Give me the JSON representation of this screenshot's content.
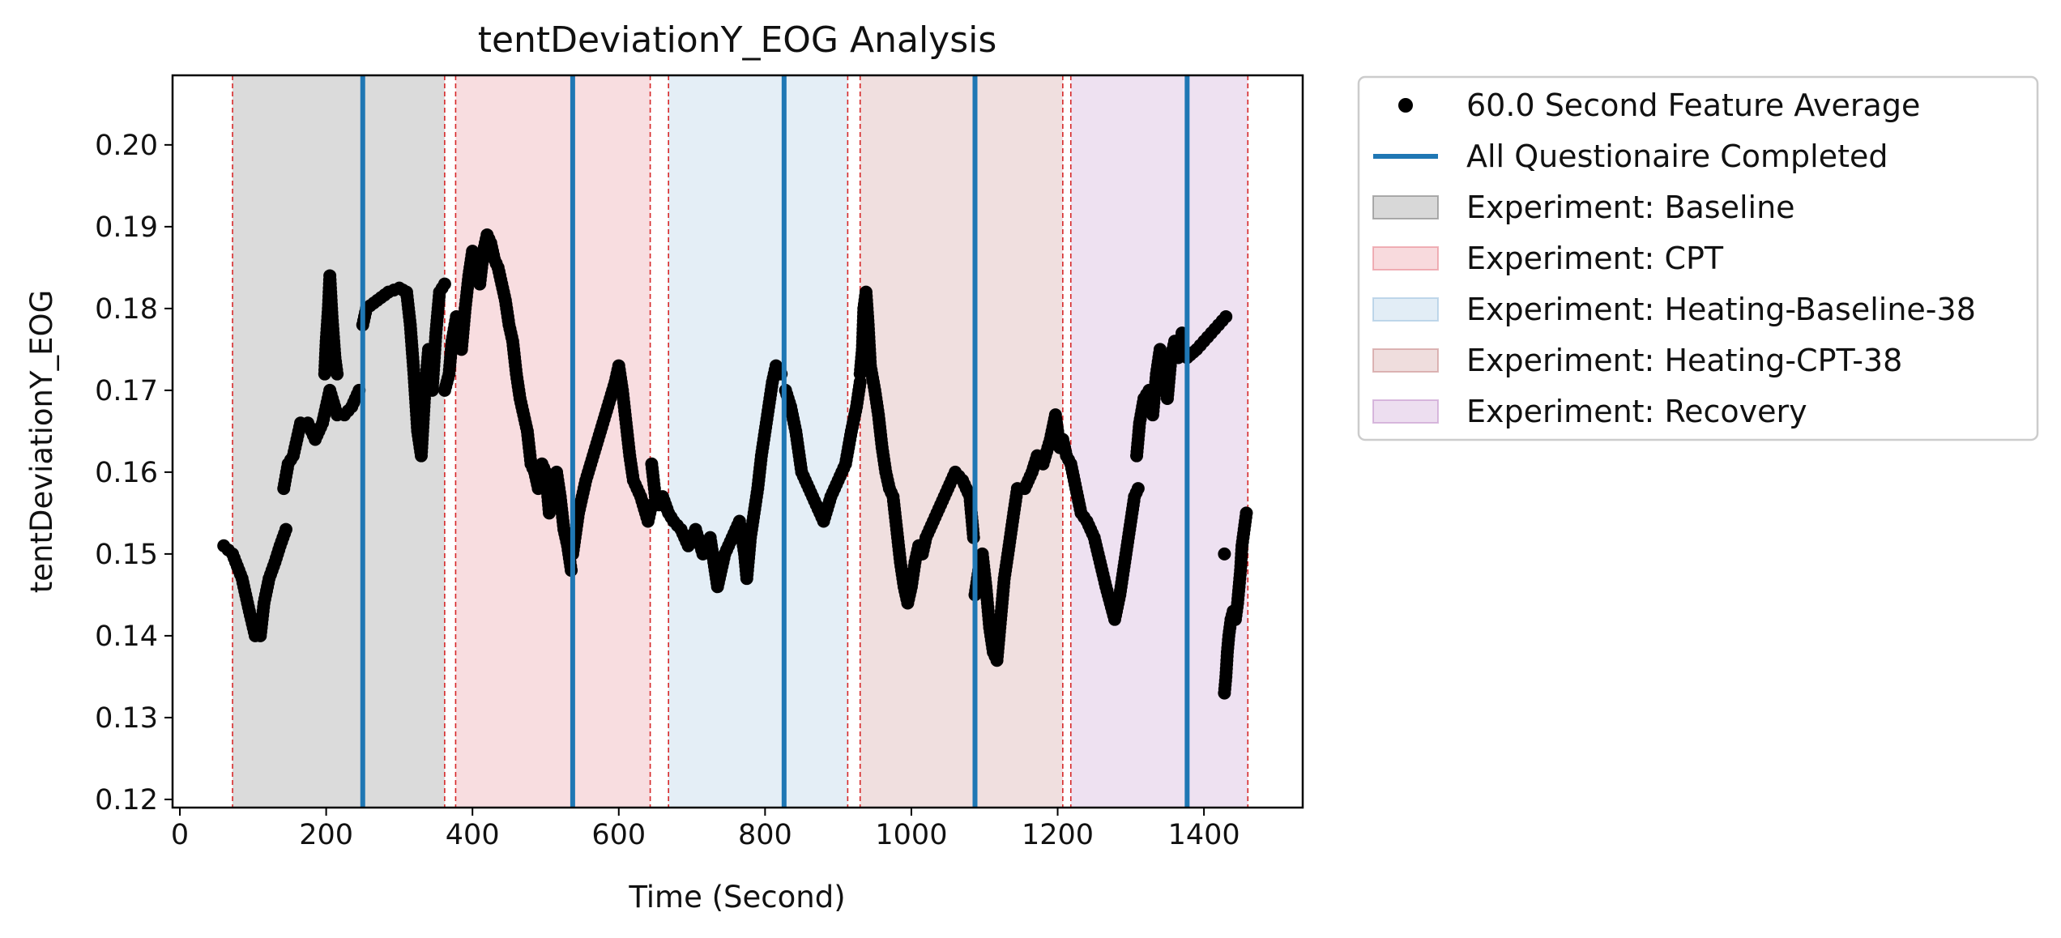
{
  "chart_data": {
    "type": "scatter",
    "title": "tentDeviationY_EOG Analysis",
    "xlabel": "Time (Second)",
    "ylabel": "tentDeviationY_EOG",
    "xlim": [
      -10,
      1535
    ],
    "ylim": [
      0.119,
      0.2085
    ],
    "x_ticks": [
      0,
      200,
      400,
      600,
      800,
      1000,
      1200,
      1400
    ],
    "y_ticks": [
      0.12,
      0.13,
      0.14,
      0.15,
      0.16,
      0.17,
      0.18,
      0.19,
      0.2
    ],
    "y_tick_labels": [
      "0.12",
      "0.13",
      "0.14",
      "0.15",
      "0.16",
      "0.17",
      "0.18",
      "0.19",
      "0.20"
    ],
    "grid": false,
    "legend_placement": "outside upper right",
    "legend": [
      {
        "label": "60.0 Second Feature Average",
        "kind": "marker",
        "color": "#000000"
      },
      {
        "label": "All Questionaire Completed",
        "kind": "line",
        "color": "#1f77b4"
      },
      {
        "label": "Experiment: Baseline",
        "kind": "patch",
        "color": "#7f7f7f"
      },
      {
        "label": "Experiment: CPT",
        "kind": "patch",
        "color": "#e7858f"
      },
      {
        "label": "Experiment: Heating-Baseline-38",
        "kind": "patch",
        "color": "#9fc2e0"
      },
      {
        "label": "Experiment: Heating-CPT-38",
        "kind": "patch",
        "color": "#c98d8d"
      },
      {
        "label": "Experiment: Recovery",
        "kind": "patch",
        "color": "#c393cc"
      }
    ],
    "phases": [
      {
        "name": "Experiment: Baseline",
        "start": 72,
        "end": 362,
        "color": "#7f7f7f"
      },
      {
        "name": "Experiment: CPT",
        "start": 377,
        "end": 643,
        "color": "#e7858f"
      },
      {
        "name": "Experiment: Heating-Baseline-38",
        "start": 668,
        "end": 913,
        "color": "#9fc2e0"
      },
      {
        "name": "Experiment: Heating-CPT-38",
        "start": 930,
        "end": 1207,
        "color": "#c98d8d"
      },
      {
        "name": "Experiment: Recovery",
        "start": 1218,
        "end": 1460,
        "color": "#c393cc"
      }
    ],
    "phase_boundaries": [
      72,
      362,
      377,
      643,
      668,
      913,
      930,
      1207,
      1218,
      1460
    ],
    "questionnaire_completed": [
      250,
      537,
      826,
      1087,
      1377
    ],
    "series": [
      {
        "name": "60.0 Second Feature Average",
        "color": "#000000",
        "segments": [
          [
            [
              60,
              0.151
            ],
            [
              72,
              0.15
            ],
            [
              85,
              0.147
            ],
            [
              95,
              0.143
            ],
            [
              103,
              0.14
            ],
            [
              110,
              0.14
            ],
            [
              115,
              0.144
            ],
            [
              122,
              0.147
            ],
            [
              130,
              0.149
            ],
            [
              137,
              0.151
            ],
            [
              145,
              0.153
            ]
          ],
          [
            [
              142,
              0.158
            ],
            [
              148,
              0.161
            ],
            [
              155,
              0.162
            ],
            [
              160,
              0.164
            ],
            [
              165,
              0.166
            ],
            [
              175,
              0.166
            ],
            [
              185,
              0.164
            ],
            [
              195,
              0.166
            ],
            [
              200,
              0.168
            ],
            [
              205,
              0.17
            ],
            [
              215,
              0.167
            ],
            [
              225,
              0.167
            ],
            [
              235,
              0.168
            ],
            [
              245,
              0.17
            ]
          ],
          [
            [
              198,
              0.172
            ],
            [
              200,
              0.176
            ],
            [
              203,
              0.18
            ],
            [
              205,
              0.184
            ],
            [
              208,
              0.179
            ],
            [
              212,
              0.174
            ],
            [
              215,
              0.172
            ]
          ],
          [
            [
              250,
              0.178
            ],
            [
              255,
              0.18
            ],
            [
              270,
              0.181
            ],
            [
              285,
              0.182
            ],
            [
              300,
              0.1825
            ],
            [
              310,
              0.182
            ],
            [
              315,
              0.178
            ],
            [
              320,
              0.172
            ],
            [
              325,
              0.165
            ],
            [
              330,
              0.162
            ],
            [
              335,
              0.17
            ],
            [
              340,
              0.175
            ],
            [
              345,
              0.17
            ],
            [
              350,
              0.177
            ],
            [
              355,
              0.182
            ],
            [
              362,
              0.183
            ]
          ],
          [
            [
              362,
              0.17
            ],
            [
              368,
              0.172
            ],
            [
              372,
              0.176
            ],
            [
              378,
              0.179
            ],
            [
              385,
              0.175
            ],
            [
              390,
              0.18
            ],
            [
              395,
              0.184
            ],
            [
              400,
              0.187
            ],
            [
              405,
              0.186
            ],
            [
              410,
              0.183
            ],
            [
              415,
              0.187
            ],
            [
              420,
              0.189
            ],
            [
              425,
              0.188
            ],
            [
              430,
              0.186
            ],
            [
              435,
              0.185
            ],
            [
              440,
              0.183
            ],
            [
              445,
              0.181
            ],
            [
              450,
              0.178
            ],
            [
              455,
              0.176
            ],
            [
              460,
              0.172
            ],
            [
              465,
              0.169
            ],
            [
              470,
              0.167
            ],
            [
              475,
              0.165
            ],
            [
              480,
              0.161
            ],
            [
              485,
              0.16
            ],
            [
              490,
              0.158
            ],
            [
              495,
              0.161
            ],
            [
              500,
              0.16
            ],
            [
              505,
              0.155
            ],
            [
              510,
              0.159
            ],
            [
              515,
              0.16
            ],
            [
              520,
              0.157
            ],
            [
              525,
              0.153
            ],
            [
              530,
              0.151
            ],
            [
              535,
              0.148
            ]
          ],
          [
            [
              537,
              0.15
            ],
            [
              545,
              0.155
            ],
            [
              555,
              0.159
            ],
            [
              565,
              0.162
            ],
            [
              575,
              0.165
            ],
            [
              585,
              0.168
            ],
            [
              595,
              0.171
            ],
            [
              600,
              0.173
            ],
            [
              605,
              0.17
            ],
            [
              610,
              0.166
            ],
            [
              615,
              0.162
            ],
            [
              620,
              0.159
            ],
            [
              630,
              0.157
            ],
            [
              640,
              0.154
            ],
            [
              645,
              0.156
            ]
          ],
          [
            [
              645,
              0.161
            ],
            [
              650,
              0.157
            ],
            [
              655,
              0.156
            ],
            [
              660,
              0.157
            ],
            [
              668,
              0.155
            ],
            [
              675,
              0.154
            ],
            [
              685,
              0.153
            ],
            [
              695,
              0.151
            ],
            [
              705,
              0.153
            ],
            [
              715,
              0.15
            ],
            [
              725,
              0.152
            ],
            [
              735,
              0.146
            ],
            [
              745,
              0.15
            ],
            [
              755,
              0.152
            ],
            [
              765,
              0.154
            ],
            [
              772,
              0.15
            ],
            [
              775,
              0.147
            ],
            [
              780,
              0.152
            ],
            [
              785,
              0.155
            ],
            [
              790,
              0.158
            ],
            [
              795,
              0.162
            ],
            [
              800,
              0.165
            ],
            [
              805,
              0.168
            ],
            [
              810,
              0.171
            ],
            [
              815,
              0.173
            ],
            [
              822,
              0.172
            ]
          ],
          [
            [
              828,
              0.17
            ],
            [
              835,
              0.168
            ],
            [
              842,
              0.165
            ],
            [
              850,
              0.16
            ],
            [
              860,
              0.158
            ],
            [
              870,
              0.156
            ],
            [
              880,
              0.154
            ],
            [
              890,
              0.157
            ],
            [
              900,
              0.159
            ],
            [
              910,
              0.161
            ],
            [
              918,
              0.165
            ],
            [
              925,
              0.168
            ],
            [
              930,
              0.171
            ]
          ],
          [
            [
              930,
              0.172
            ],
            [
              933,
              0.175
            ],
            [
              935,
              0.18
            ],
            [
              938,
              0.182
            ],
            [
              941,
              0.178
            ],
            [
              944,
              0.173
            ],
            [
              950,
              0.17
            ],
            [
              955,
              0.167
            ],
            [
              960,
              0.163
            ],
            [
              965,
              0.16
            ],
            [
              970,
              0.158
            ],
            [
              975,
              0.157
            ],
            [
              980,
              0.153
            ],
            [
              985,
              0.149
            ],
            [
              990,
              0.146
            ],
            [
              995,
              0.144
            ],
            [
              1000,
              0.146
            ],
            [
              1005,
              0.149
            ],
            [
              1010,
              0.151
            ],
            [
              1015,
              0.15
            ],
            [
              1020,
              0.152
            ],
            [
              1030,
              0.154
            ],
            [
              1040,
              0.156
            ],
            [
              1050,
              0.158
            ],
            [
              1060,
              0.16
            ],
            [
              1070,
              0.159
            ],
            [
              1080,
              0.157
            ],
            [
              1085,
              0.152
            ]
          ],
          [
            [
              1087,
              0.145
            ],
            [
              1092,
              0.148
            ],
            [
              1097,
              0.15
            ],
            [
              1102,
              0.146
            ],
            [
              1107,
              0.141
            ],
            [
              1112,
              0.138
            ],
            [
              1117,
              0.137
            ],
            [
              1122,
              0.142
            ],
            [
              1127,
              0.147
            ],
            [
              1132,
              0.15
            ],
            [
              1140,
              0.155
            ],
            [
              1145,
              0.158
            ],
            [
              1155,
              0.158
            ],
            [
              1165,
              0.16
            ],
            [
              1172,
              0.162
            ],
            [
              1180,
              0.161
            ],
            [
              1190,
              0.164
            ],
            [
              1197,
              0.167
            ],
            [
              1203,
              0.163
            ]
          ],
          [
            [
              1207,
              0.164
            ],
            [
              1212,
              0.162
            ],
            [
              1218,
              0.161
            ],
            [
              1225,
              0.158
            ],
            [
              1232,
              0.155
            ],
            [
              1240,
              0.154
            ],
            [
              1250,
              0.152
            ],
            [
              1258,
              0.149
            ],
            [
              1266,
              0.146
            ],
            [
              1272,
              0.144
            ],
            [
              1278,
              0.142
            ],
            [
              1285,
              0.145
            ],
            [
              1290,
              0.148
            ],
            [
              1295,
              0.151
            ],
            [
              1300,
              0.154
            ],
            [
              1305,
              0.157
            ],
            [
              1310,
              0.158
            ]
          ],
          [
            [
              1308,
              0.162
            ],
            [
              1312,
              0.166
            ],
            [
              1318,
              0.169
            ],
            [
              1325,
              0.17
            ],
            [
              1330,
              0.167
            ],
            [
              1335,
              0.172
            ],
            [
              1340,
              0.175
            ],
            [
              1345,
              0.172
            ],
            [
              1350,
              0.169
            ],
            [
              1355,
              0.174
            ],
            [
              1360,
              0.176
            ],
            [
              1365,
              0.174
            ],
            [
              1370,
              0.177
            ]
          ],
          [
            [
              1377,
              0.174
            ],
            [
              1390,
              0.175
            ],
            [
              1400,
              0.176
            ],
            [
              1410,
              0.177
            ],
            [
              1420,
              0.178
            ],
            [
              1430,
              0.179
            ]
          ],
          [
            [
              1428,
              0.133
            ],
            [
              1430,
              0.135
            ],
            [
              1432,
              0.138
            ],
            [
              1434,
              0.14
            ],
            [
              1437,
              0.142
            ],
            [
              1440,
              0.143
            ],
            [
              1443,
              0.142
            ],
            [
              1446,
              0.144
            ],
            [
              1448,
              0.146
            ],
            [
              1450,
              0.148
            ],
            [
              1452,
              0.151
            ],
            [
              1455,
              0.153
            ],
            [
              1458,
              0.155
            ]
          ]
        ],
        "extra_points": [
          [
            1428,
            0.15
          ]
        ]
      }
    ]
  }
}
